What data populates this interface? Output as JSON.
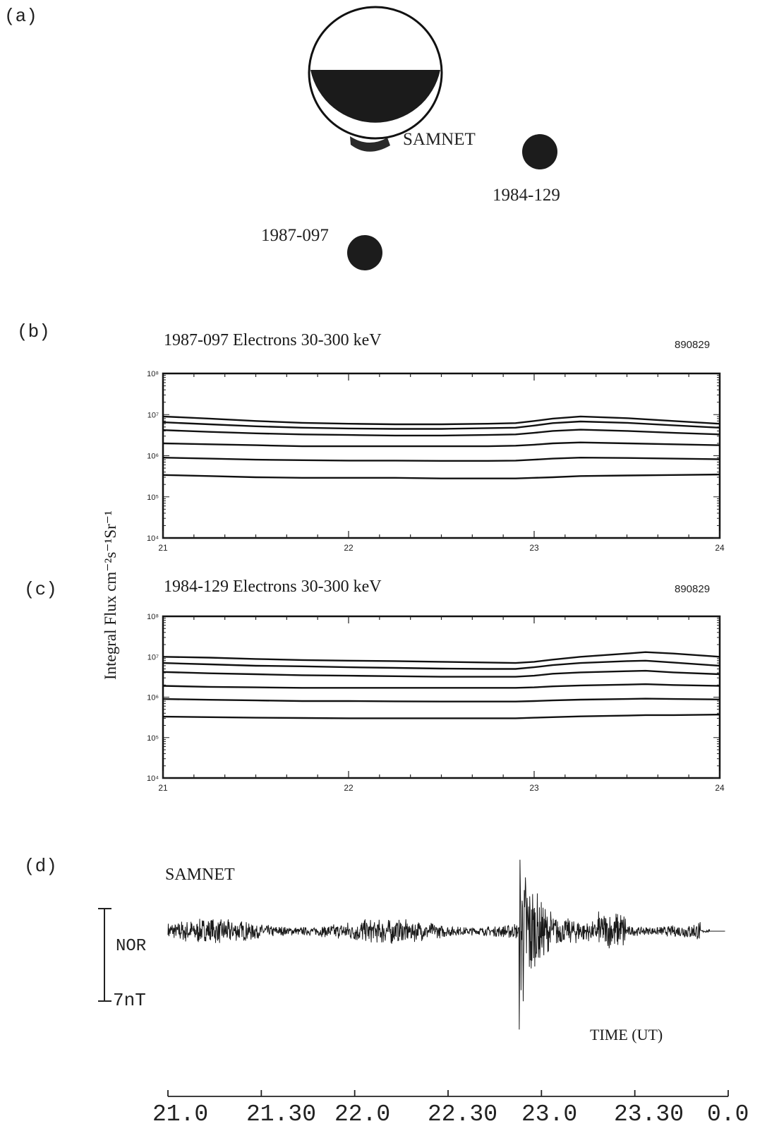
{
  "panels": {
    "a": {
      "label": "(a)",
      "samnet": "SAMNET",
      "sat1": "1984-129",
      "sat2": "1987-097"
    },
    "b": {
      "label": "(b)",
      "title": "1987-097  Electrons 30-300 keV",
      "code": "890829"
    },
    "c": {
      "label": "(c)",
      "title": "1984-129  Electrons 30-300 keV",
      "code": "890829"
    },
    "d": {
      "label": "(d)",
      "title": "SAMNET",
      "station": "NOR",
      "scale": "7nT",
      "xlabel": "TIME (UT)"
    }
  },
  "ylabel": "Integral Flux cm⁻²s⁻¹Sr⁻¹",
  "chart_data": [
    {
      "type": "line",
      "title": "1987-097  Electrons 30-300 keV",
      "x": [
        21,
        21.25,
        21.5,
        21.75,
        22,
        22.25,
        22.5,
        22.75,
        22.9,
        23,
        23.1,
        23.25,
        23.5,
        23.75,
        24
      ],
      "xticks": [
        "21",
        "22",
        "23",
        "24"
      ],
      "ylog": true,
      "ylim": [
        10000,
        100000000
      ],
      "yticks": [
        "10⁴",
        "10⁵",
        "10⁶",
        "10⁷",
        "10⁸"
      ],
      "series": [
        {
          "values": [
            9000000.0,
            8000000.0,
            7000000.0,
            6300000.0,
            6000000.0,
            5800000.0,
            5800000.0,
            6000000.0,
            6200000.0,
            7000000.0,
            8000000.0,
            9000000.0,
            8200000.0,
            7000000.0,
            6000000.0
          ]
        },
        {
          "values": [
            6500000.0,
            5800000.0,
            5200000.0,
            4800000.0,
            4600000.0,
            4500000.0,
            4500000.0,
            4700000.0,
            4800000.0,
            5400000.0,
            6200000.0,
            6800000.0,
            6300000.0,
            5500000.0,
            4800000.0
          ]
        },
        {
          "values": [
            4200000.0,
            3800000.0,
            3500000.0,
            3300000.0,
            3200000.0,
            3100000.0,
            3100000.0,
            3200000.0,
            3300000.0,
            3600000.0,
            4000000.0,
            4300000.0,
            4000000.0,
            3600000.0,
            3300000.0
          ]
        },
        {
          "values": [
            2000000.0,
            1900000.0,
            1800000.0,
            1700000.0,
            1700000.0,
            1700000.0,
            1700000.0,
            1700000.0,
            1750000.0,
            1850000.0,
            2000000.0,
            2100000.0,
            2000000.0,
            1900000.0,
            1800000.0
          ]
        },
        {
          "values": [
            900000.0,
            850000.0,
            800000.0,
            780000.0,
            760000.0,
            760000.0,
            750000.0,
            750000.0,
            760000.0,
            800000.0,
            850000.0,
            900000.0,
            880000.0,
            850000.0,
            820000.0
          ]
        },
        {
          "values": [
            340000.0,
            320000.0,
            300000.0,
            290000.0,
            290000.0,
            290000.0,
            280000.0,
            280000.0,
            280000.0,
            290000.0,
            300000.0,
            320000.0,
            330000.0,
            340000.0,
            350000.0
          ]
        }
      ]
    },
    {
      "type": "line",
      "title": "1984-129  Electrons 30-300 keV",
      "x": [
        21,
        21.25,
        21.5,
        21.75,
        22,
        22.25,
        22.5,
        22.75,
        22.9,
        23,
        23.1,
        23.25,
        23.5,
        23.6,
        23.75,
        24
      ],
      "xticks": [
        "21",
        "22",
        "23",
        "24"
      ],
      "ylog": true,
      "ylim": [
        10000,
        100000000
      ],
      "yticks": [
        "10⁴",
        "10⁵",
        "10⁶",
        "10⁷",
        "10⁸"
      ],
      "series": [
        {
          "values": [
            10000000.0,
            9500000.0,
            8800000.0,
            8300000.0,
            8000000.0,
            7800000.0,
            7500000.0,
            7200000.0,
            7000000.0,
            7500000.0,
            8500000.0,
            10000000.0,
            12000000.0,
            13000000.0,
            12000000.0,
            10000000.0
          ]
        },
        {
          "values": [
            7000000.0,
            6500000.0,
            6000000.0,
            5800000.0,
            5500000.0,
            5300000.0,
            5100000.0,
            5000000.0,
            5000000.0,
            5500000.0,
            6200000.0,
            7000000.0,
            7800000.0,
            8000000.0,
            7200000.0,
            6000000.0
          ]
        },
        {
          "values": [
            4200000.0,
            3900000.0,
            3700000.0,
            3500000.0,
            3400000.0,
            3300000.0,
            3200000.0,
            3200000.0,
            3200000.0,
            3400000.0,
            3800000.0,
            4100000.0,
            4400000.0,
            4500000.0,
            4100000.0,
            3700000.0
          ]
        },
        {
          "values": [
            1900000.0,
            1800000.0,
            1750000.0,
            1700000.0,
            1700000.0,
            1700000.0,
            1700000.0,
            1700000.0,
            1700000.0,
            1750000.0,
            1850000.0,
            1950000.0,
            2050000.0,
            2100000.0,
            2000000.0,
            1900000.0
          ]
        },
        {
          "values": [
            900000.0,
            860000.0,
            830000.0,
            800000.0,
            800000.0,
            790000.0,
            780000.0,
            780000.0,
            780000.0,
            800000.0,
            830000.0,
            870000.0,
            900000.0,
            920000.0,
            900000.0,
            880000.0
          ]
        },
        {
          "values": [
            330000.0,
            320000.0,
            310000.0,
            305000.0,
            300000.0,
            300000.0,
            300000.0,
            300000.0,
            300000.0,
            310000.0,
            320000.0,
            335000.0,
            350000.0,
            360000.0,
            360000.0,
            370000.0
          ]
        }
      ]
    },
    {
      "type": "line",
      "title": "SAMNET",
      "series_label": "NOR",
      "scale_bar": "7nT",
      "xlabel": "TIME (UT)",
      "xticks": [
        "21.0",
        "21.30",
        "22.0",
        "22.30",
        "23.0",
        "23.30",
        "0.0"
      ],
      "x_range_hours": [
        21,
        24
      ],
      "trace": {
        "quiet_amplitude_nT": 1.2,
        "pulsation_start_ut": 22.88,
        "peak_amplitude_nT": 6.5,
        "end_ut": 23.9
      }
    }
  ]
}
